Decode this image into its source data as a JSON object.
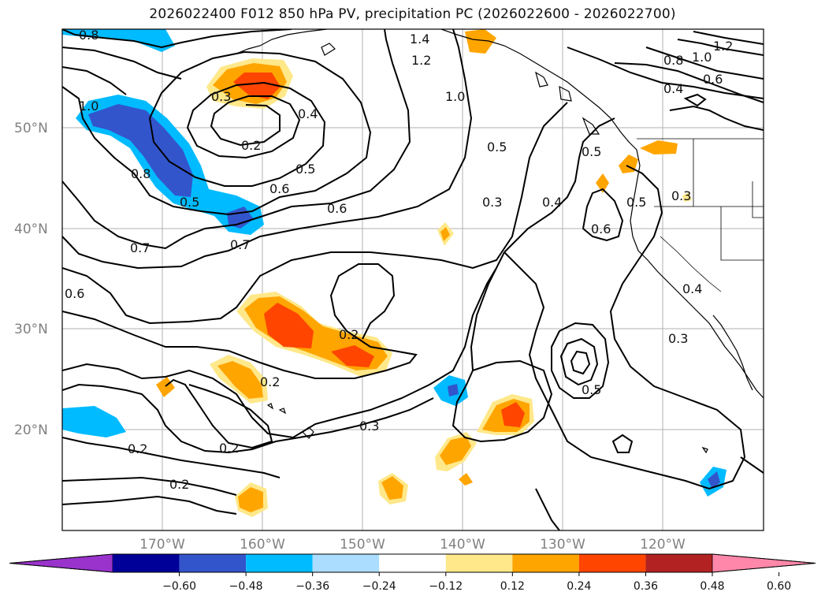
{
  "title": "2026022400 F012 850 hPa PV, precipitation PC (2026022600 - 2026022700)",
  "lat_labels": [
    "50°N",
    "40°N",
    "30°N",
    "20°N"
  ],
  "lon_labels": [
    "170°W",
    "160°W",
    "150°W",
    "140°W",
    "130°W",
    "120°W"
  ],
  "colorbar": {
    "ticks": [
      "−0.60",
      "−0.48",
      "−0.36",
      "−0.24",
      "−0.12",
      "0.12",
      "0.24",
      "0.36",
      "0.48",
      "0.60"
    ],
    "colors": [
      "#9933cc",
      "#000099",
      "#3355cc",
      "#00bbff",
      "#aaddff",
      "#ffffff",
      "#ffe88a",
      "#ffa500",
      "#ff4500",
      "#b22222",
      "#ff88aa"
    ]
  },
  "contour_labels": [
    "0.8",
    "1.4",
    "1.2",
    "1.0",
    "1.2",
    "1.0",
    "0.8",
    "0.6",
    "0.4",
    "0.3",
    "0.4",
    "1.0",
    "0.2",
    "0.5",
    "0.6",
    "0.5",
    "0.8",
    "0.5",
    "0.6",
    "0.7",
    "0.7",
    "0.5",
    "0.3",
    "0.4",
    "0.6",
    "0.5",
    "0.3",
    "0.6",
    "0.2",
    "0.2",
    "0.4",
    "0.3",
    "0.3",
    "0.5",
    "0.2",
    "0.2",
    "0.2"
  ]
}
